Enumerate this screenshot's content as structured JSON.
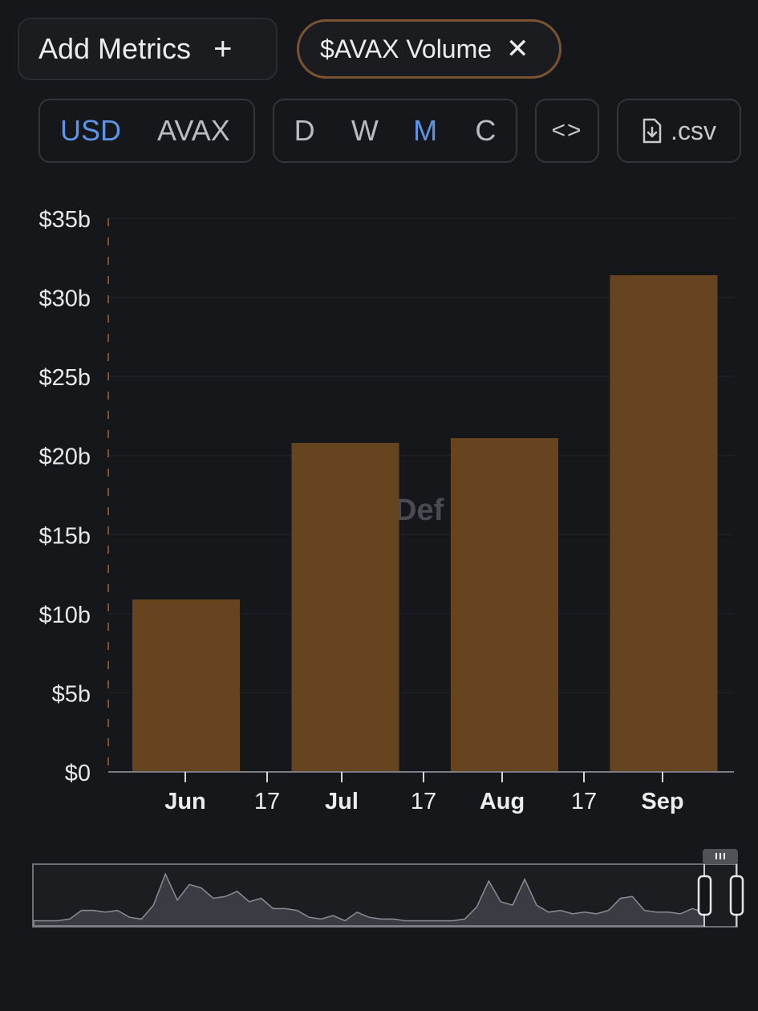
{
  "controls": {
    "add_metrics_label": "Add Metrics",
    "add_icon": "plus-icon",
    "metric_chip_label": "$AVAX Volume",
    "close_icon": "close-icon",
    "currency_options": [
      "USD",
      "AVAX"
    ],
    "currency_selected": "USD",
    "period_options": [
      "D",
      "W",
      "M",
      "C"
    ],
    "period_selected": "M",
    "embed_label": "<>",
    "csv_label": ".csv",
    "csv_icon": "file-download-icon"
  },
  "colors": {
    "background": "#16171b",
    "bar": "#66441f",
    "accent_active": "#5e94e6",
    "chip_border": "#7a5330"
  },
  "chart_data": {
    "type": "bar",
    "categories": [
      "Jun",
      "Jul",
      "Aug",
      "Sep"
    ],
    "values": [
      10.9,
      20.8,
      21.1,
      31.4
    ],
    "unit": "billion USD",
    "ylim": [
      0,
      35
    ],
    "y_ticks": [
      "$0",
      "$5b",
      "$10b",
      "$15b",
      "$20b",
      "$25b",
      "$30b",
      "$35b"
    ],
    "x_ticks": [
      "Jun",
      "17",
      "Jul",
      "17",
      "Aug",
      "17",
      "Sep"
    ],
    "watermark": "Def",
    "grid": true,
    "legend": "none"
  },
  "brush": {
    "overview_values": [
      3,
      3,
      3,
      4,
      9,
      9,
      8,
      9,
      5,
      4,
      12,
      30,
      15,
      24,
      22,
      16,
      17,
      20,
      14,
      16,
      10,
      10,
      9,
      5,
      4,
      6,
      3,
      8,
      5,
      4,
      4,
      3,
      3,
      3,
      3,
      3,
      4,
      11,
      26,
      14,
      12,
      27,
      12,
      8,
      9,
      7,
      8,
      7,
      9,
      16,
      17,
      9,
      8,
      8,
      7,
      10,
      8
    ]
  }
}
